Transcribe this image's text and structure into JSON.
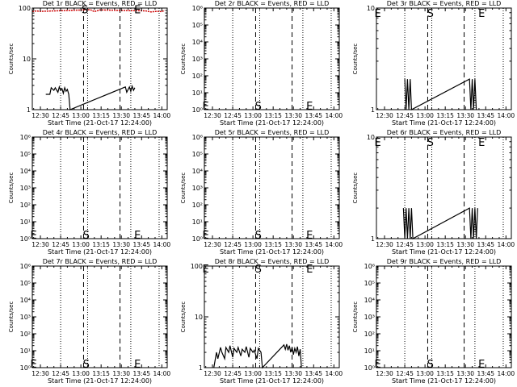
{
  "chart_data": [
    {
      "type": "line",
      "title": "Det 1r BLACK = Events, RED = LLD",
      "xlabel": "Start Time (21-Oct-17 12:24:00)",
      "ylabel": "Counts/sec",
      "yscale": "log",
      "ylim": [
        1,
        100
      ],
      "ytick_labels": [
        "1",
        "10",
        "100"
      ],
      "x_tick_labels": [
        "12:30",
        "12:45",
        "13:00",
        "13:15",
        "13:30",
        "13:45",
        "14:00"
      ],
      "xlim": [
        "12:24",
        "14:04"
      ],
      "dotted_lines": [
        "12:45",
        "13:05",
        "13:37",
        "13:58"
      ],
      "dashed_lines": [
        "13:02",
        "13:29"
      ],
      "markers": [
        {
          "text": "S",
          "x": "13:03",
          "y": 95
        },
        {
          "text": "E",
          "x": "13:42",
          "y": 95
        }
      ],
      "series": [
        {
          "color": "#000000",
          "x": [
            "12:34",
            "12:37",
            "12:38",
            "12:40",
            "12:41",
            "12:43",
            "12:44",
            "12:45",
            "12:46",
            "12:47",
            "12:48",
            "12:49",
            "12:50",
            "12:51",
            "12:52",
            "13:33",
            "13:34",
            "13:36",
            "13:37",
            "13:38",
            "13:39",
            "13:40"
          ],
          "y": [
            2,
            2,
            2.7,
            2.4,
            2.7,
            2.2,
            2.8,
            2.4,
            2.6,
            2.1,
            2.7,
            2.3,
            2.5,
            2,
            1,
            2.8,
            2.2,
            2.8,
            2.3,
            2.9,
            2.4,
            2.7
          ]
        },
        {
          "color": "#cc0000",
          "x": [
            "12:24",
            "12:27",
            "12:30",
            "13:07",
            "13:10",
            "13:14",
            "13:48",
            "13:52",
            "13:56",
            "14:00",
            "14:02"
          ],
          "y": [
            85,
            88,
            86,
            93,
            85,
            92,
            88,
            84,
            86,
            85,
            90
          ]
        }
      ]
    },
    {
      "type": "line",
      "title": "Det 2r BLACK = Events, RED = LLD",
      "xlabel": "Start Time (21-Oct-17 12:24:00)",
      "ylabel": "Counts/sec",
      "yscale": "log",
      "ylim": [
        1,
        1000000
      ],
      "ytick_labels": [
        "10⁰",
        "10¹",
        "10²",
        "10³",
        "10⁴",
        "10⁵",
        "10⁶"
      ],
      "x_tick_labels": [
        "12:30",
        "12:45",
        "13:00",
        "13:15",
        "13:30",
        "13:45",
        "14:00"
      ],
      "xlim": [
        "12:24",
        "14:04"
      ],
      "dotted_lines": [
        "12:45",
        "13:05",
        "13:37",
        "13:58"
      ],
      "dashed_lines": [
        "13:02",
        "13:29"
      ],
      "markers": [
        {
          "text": "E",
          "x": "12:25",
          "y": 1.7
        },
        {
          "text": "S",
          "x": "13:04",
          "y": 1.7
        },
        {
          "text": "E",
          "x": "13:42",
          "y": 1.7
        }
      ],
      "series": []
    },
    {
      "type": "line",
      "title": "Det 3r BLACK = Events, RED = LLD",
      "xlabel": "Start Time (21-Oct-17 12:24:00)",
      "ylabel": "Counts/sec",
      "yscale": "log",
      "ylim": [
        1,
        10
      ],
      "ytick_labels": [
        "1",
        "10"
      ],
      "x_tick_labels": [
        "12:30",
        "12:45",
        "13:00",
        "13:15",
        "13:30",
        "13:45",
        "14:00"
      ],
      "xlim": [
        "12:24",
        "14:04"
      ],
      "dotted_lines": [
        "12:45",
        "13:05",
        "13:37",
        "13:58"
      ],
      "dashed_lines": [
        "13:02",
        "13:29"
      ],
      "markers": [
        {
          "text": "E",
          "x": "12:25",
          "y": 9
        },
        {
          "text": "S",
          "x": "13:04",
          "y": 9
        },
        {
          "text": "E",
          "x": "13:42",
          "y": 9
        }
      ],
      "series": [
        {
          "color": "#000000",
          "x": [
            "12:45",
            "12:46",
            "12:47",
            "12:48",
            "12:49",
            "12:50",
            "13:33",
            "13:34",
            "13:35",
            "13:36",
            "13:37",
            "13:38"
          ],
          "y": [
            2,
            1,
            2,
            1,
            2,
            1,
            2,
            1,
            2,
            1,
            2,
            1
          ]
        }
      ]
    },
    {
      "type": "line",
      "title": "Det 4r BLACK = Events, RED = LLD",
      "xlabel": "Start Time (21-Oct-17 12:24:00)",
      "ylabel": "Counts/sec",
      "yscale": "log",
      "ylim": [
        1,
        1000000
      ],
      "ytick_labels": [
        "10⁰",
        "10¹",
        "10²",
        "10³",
        "10⁴",
        "10⁵",
        "10⁶"
      ],
      "x_tick_labels": [
        "12:30",
        "12:45",
        "13:00",
        "13:15",
        "13:30",
        "13:45",
        "14:00"
      ],
      "xlim": [
        "12:24",
        "14:04"
      ],
      "dotted_lines": [
        "12:45",
        "13:05",
        "13:37",
        "13:58"
      ],
      "dashed_lines": [
        "13:02",
        "13:29"
      ],
      "markers": [
        {
          "text": "E",
          "x": "12:25",
          "y": 1.7
        },
        {
          "text": "S",
          "x": "13:04",
          "y": 1.7
        },
        {
          "text": "E",
          "x": "13:42",
          "y": 1.7
        }
      ],
      "series": []
    },
    {
      "type": "line",
      "title": "Det 5r BLACK = Events, RED = LLD",
      "xlabel": "Start Time (21-Oct-17 12:24:00)",
      "ylabel": "Counts/sec",
      "yscale": "log",
      "ylim": [
        1,
        1000000
      ],
      "ytick_labels": [
        "10⁰",
        "10¹",
        "10²",
        "10³",
        "10⁴",
        "10⁵",
        "10⁶"
      ],
      "x_tick_labels": [
        "12:30",
        "12:45",
        "13:00",
        "13:15",
        "13:30",
        "13:45",
        "14:00"
      ],
      "xlim": [
        "12:24",
        "14:04"
      ],
      "dotted_lines": [
        "12:45",
        "13:05",
        "13:37",
        "13:58"
      ],
      "dashed_lines": [
        "13:02",
        "13:29"
      ],
      "markers": [
        {
          "text": "E",
          "x": "12:25",
          "y": 1.7
        },
        {
          "text": "S",
          "x": "13:04",
          "y": 1.7
        },
        {
          "text": "E",
          "x": "13:42",
          "y": 1.7
        }
      ],
      "series": []
    },
    {
      "type": "line",
      "title": "Det 6r BLACK = Events, RED = LLD",
      "xlabel": "Start Time (21-Oct-17 12:24:00)",
      "ylabel": "Counts/sec",
      "yscale": "log",
      "ylim": [
        1,
        10
      ],
      "ytick_labels": [
        "1",
        "10"
      ],
      "x_tick_labels": [
        "12:30",
        "12:45",
        "13:00",
        "13:15",
        "13:30",
        "13:45",
        "14:00"
      ],
      "xlim": [
        "12:24",
        "14:04"
      ],
      "dotted_lines": [
        "12:45",
        "13:05",
        "13:37",
        "13:58"
      ],
      "dashed_lines": [
        "13:02",
        "13:29"
      ],
      "markers": [
        {
          "text": "E",
          "x": "12:25",
          "y": 9
        },
        {
          "text": "S",
          "x": "13:04",
          "y": 9
        },
        {
          "text": "E",
          "x": "13:42",
          "y": 9
        }
      ],
      "series": [
        {
          "color": "#000000",
          "x": [
            "12:44",
            "12:45",
            "12:46",
            "12:47",
            "12:48",
            "12:49",
            "12:50",
            "12:51",
            "13:33",
            "13:34",
            "13:35",
            "13:36",
            "13:37",
            "13:38",
            "13:39"
          ],
          "y": [
            2,
            1,
            2,
            1,
            2,
            1,
            2,
            1,
            2,
            1,
            2,
            1,
            2,
            1,
            2
          ]
        }
      ]
    },
    {
      "type": "line",
      "title": "Det 7r BLACK = Events, RED = LLD",
      "xlabel": "Start Time (21-Oct-17 12:24:00)",
      "ylabel": "Counts/sec",
      "yscale": "log",
      "ylim": [
        1,
        1000000
      ],
      "ytick_labels": [
        "10⁰",
        "10¹",
        "10²",
        "10³",
        "10⁴",
        "10⁵",
        "10⁶"
      ],
      "x_tick_labels": [
        "12:30",
        "12:45",
        "13:00",
        "13:15",
        "13:30",
        "13:45",
        "14:00"
      ],
      "xlim": [
        "12:24",
        "14:04"
      ],
      "dotted_lines": [
        "12:45",
        "13:05",
        "13:37",
        "13:58"
      ],
      "dashed_lines": [
        "13:02",
        "13:29"
      ],
      "markers": [
        {
          "text": "E",
          "x": "12:25",
          "y": 1.7
        },
        {
          "text": "S",
          "x": "13:04",
          "y": 1.7
        },
        {
          "text": "E",
          "x": "13:42",
          "y": 1.7
        }
      ],
      "series": []
    },
    {
      "type": "line",
      "title": "Det 8r BLACK = Events, RED = LLD",
      "xlabel": "Start Time (21-Oct-17 12:24:00)",
      "ylabel": "Counts/sec",
      "yscale": "log",
      "ylim": [
        1,
        100
      ],
      "ytick_labels": [
        "1",
        "10",
        "100"
      ],
      "x_tick_labels": [
        "12:30",
        "12:45",
        "13:00",
        "13:15",
        "13:30",
        "13:45",
        "14:00"
      ],
      "xlim": [
        "12:24",
        "14:04"
      ],
      "dotted_lines": [
        "12:45",
        "13:05",
        "13:37",
        "13:58"
      ],
      "dashed_lines": [
        "13:02",
        "13:29"
      ],
      "markers": [
        {
          "text": "E",
          "x": "12:25",
          "y": 90
        },
        {
          "text": "S",
          "x": "13:04",
          "y": 90
        },
        {
          "text": "E",
          "x": "13:42",
          "y": 90
        }
      ],
      "series": [
        {
          "color": "#000000",
          "x": [
            "12:31",
            "12:33",
            "12:34",
            "12:36",
            "12:37",
            "12:39",
            "12:40",
            "12:42",
            "12:43",
            "12:45",
            "12:46",
            "12:48",
            "12:49",
            "12:51",
            "12:52",
            "12:54",
            "12:55",
            "12:57",
            "12:58",
            "13:00",
            "13:01",
            "13:03",
            "13:04",
            "13:06",
            "13:07",
            "13:23",
            "13:24",
            "13:25",
            "13:26",
            "13:27",
            "13:28",
            "13:29",
            "13:30",
            "13:31",
            "13:32",
            "13:33",
            "13:34",
            "13:35",
            "13:36"
          ],
          "y": [
            1,
            2,
            1.5,
            2.5,
            2,
            1.5,
            2.5,
            2,
            2.7,
            1.6,
            2.4,
            2,
            2.5,
            1.7,
            2.3,
            2,
            2.6,
            1.6,
            2.4,
            2,
            2.2,
            1.5,
            2.4,
            2,
            1,
            2.8,
            2.3,
            2.9,
            2.2,
            2.7,
            2,
            2.5,
            1.8,
            2.4,
            2,
            2.6,
            1.7,
            2.3,
            1
          ]
        }
      ]
    },
    {
      "type": "line",
      "title": "Det 9r BLACK = Events, RED = LLD",
      "xlabel": "Start Time (21-Oct-17 12:24:00)",
      "ylabel": "Counts/sec",
      "yscale": "log",
      "ylim": [
        1,
        1000000
      ],
      "ytick_labels": [
        "10⁰",
        "10¹",
        "10²",
        "10³",
        "10⁴",
        "10⁵",
        "10⁶"
      ],
      "x_tick_labels": [
        "12:30",
        "12:45",
        "13:00",
        "13:15",
        "13:30",
        "13:45",
        "14:00"
      ],
      "xlim": [
        "12:24",
        "14:04"
      ],
      "dotted_lines": [
        "12:45",
        "13:05",
        "13:37",
        "13:58"
      ],
      "dashed_lines": [
        "13:02",
        "13:29"
      ],
      "markers": [
        {
          "text": "E",
          "x": "12:25",
          "y": 1.7
        },
        {
          "text": "S",
          "x": "13:04",
          "y": 1.7
        },
        {
          "text": "E",
          "x": "13:42",
          "y": 1.7
        }
      ],
      "series": []
    }
  ]
}
